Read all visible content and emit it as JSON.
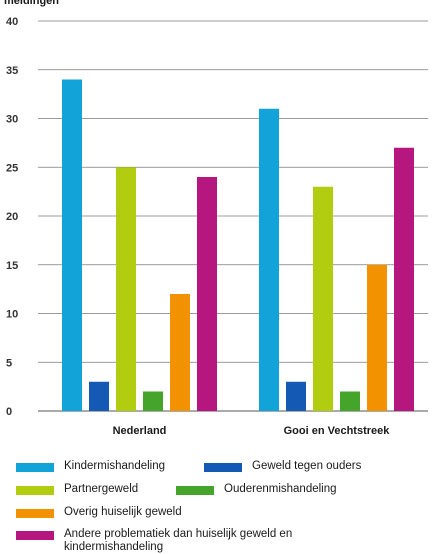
{
  "chart_data": {
    "type": "bar",
    "ylabel": "meldingen",
    "ylim": [
      0,
      40
    ],
    "yticks": [
      0,
      5,
      10,
      15,
      20,
      25,
      30,
      35,
      40
    ],
    "grid": true,
    "legend_position": "bottom",
    "categories": [
      "Nederland",
      "Gooi en Vechtstreek"
    ],
    "series": [
      {
        "name": "Kindermishandeling",
        "color": "#12a3d9",
        "values": [
          34,
          31
        ]
      },
      {
        "name": "Geweld tegen ouders",
        "color": "#1459b4",
        "values": [
          3,
          3
        ]
      },
      {
        "name": "Partnergeweld",
        "color": "#b2cc10",
        "values": [
          25,
          23
        ]
      },
      {
        "name": "Ouderenmishandeling",
        "color": "#45a52b",
        "values": [
          2,
          2
        ]
      },
      {
        "name": "Overig huiselijk geweld",
        "color": "#f39200",
        "values": [
          12,
          15
        ]
      },
      {
        "name": "Andere problematiek dan huiselijk geweld en kindermishandeling",
        "color": "#b5177e",
        "values": [
          24,
          27
        ]
      }
    ]
  }
}
